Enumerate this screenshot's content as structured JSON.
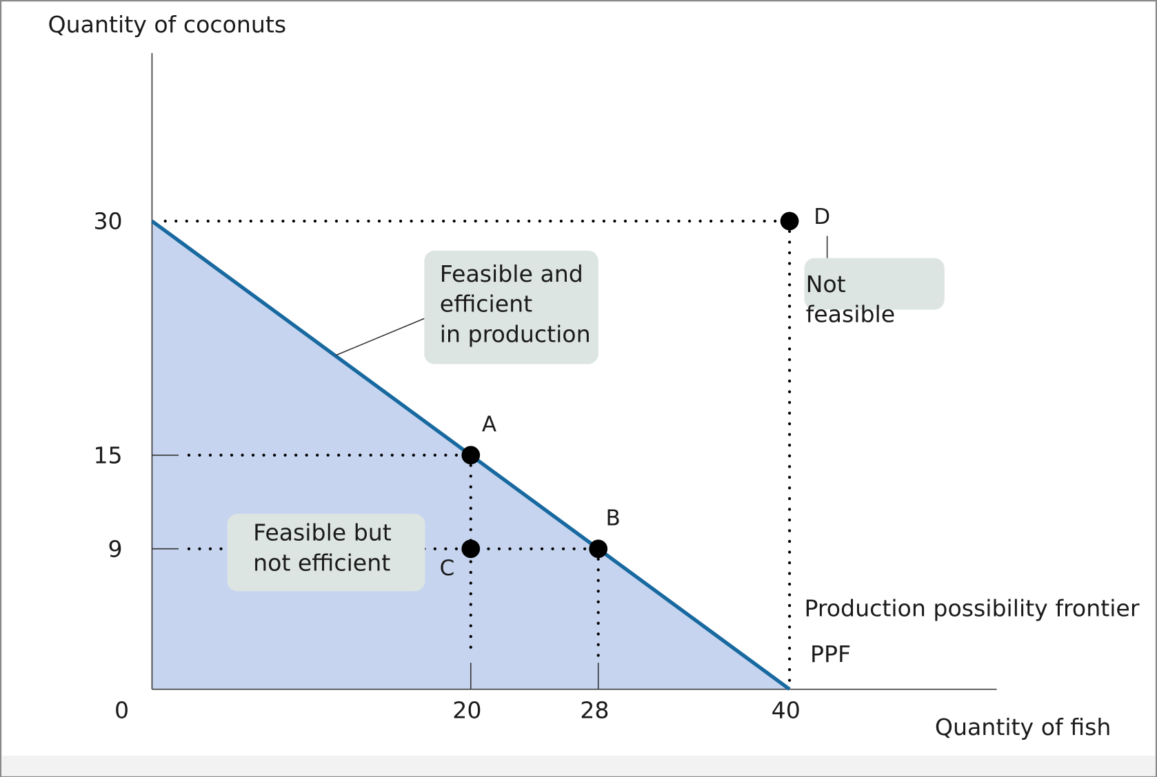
{
  "chart_data": {
    "type": "ppf",
    "y_label": "Quantity of coconuts",
    "x_label": "Quantity of fish",
    "xlim": [
      0,
      53
    ],
    "ylim": [
      0,
      41
    ],
    "xticks": [
      0,
      20,
      28,
      40
    ],
    "yticks": [
      9,
      15,
      30
    ],
    "frontier": {
      "x": [
        0,
        40
      ],
      "values": [
        30,
        0
      ],
      "color": "#17699f",
      "fill": "#c6d4ef"
    },
    "points": {
      "labels": [
        "A",
        "B",
        "C",
        "D"
      ],
      "x": [
        20,
        28,
        20,
        40
      ],
      "values": [
        15,
        9,
        9,
        30
      ],
      "color": "#000000"
    },
    "annotations": [
      {
        "lines": [
          "Feasible and",
          "efficient",
          "in production"
        ]
      },
      {
        "lines": [
          "Feasible  but",
          "not efficient"
        ]
      },
      {
        "lines": [
          "Not",
          "feasible"
        ]
      },
      {
        "lines": [
          "Production possibility frontier"
        ]
      },
      {
        "lines": [
          "PPF"
        ]
      }
    ]
  }
}
